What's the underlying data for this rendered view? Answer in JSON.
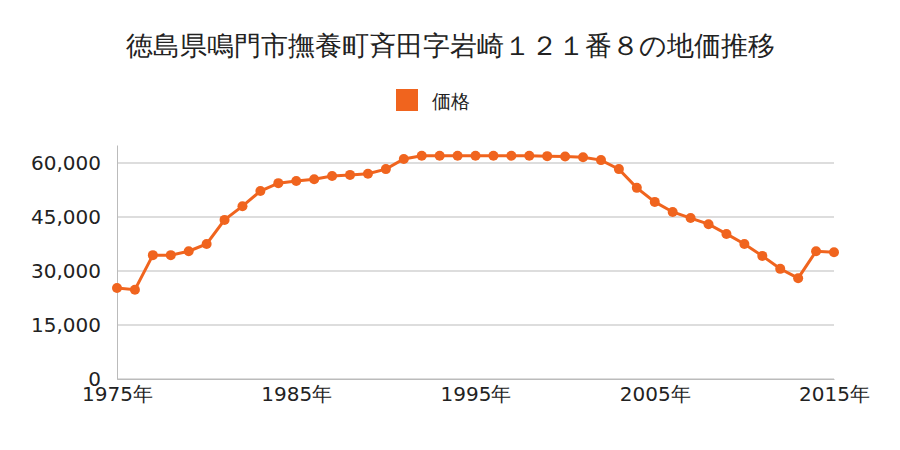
{
  "chart_data": {
    "type": "line",
    "title": "徳島県鳴門市撫養町斉田字岩崎１２１番８の地価推移",
    "x": [
      1975,
      1976,
      1977,
      1978,
      1979,
      1980,
      1981,
      1982,
      1983,
      1984,
      1985,
      1986,
      1987,
      1988,
      1989,
      1990,
      1991,
      1992,
      1993,
      1994,
      1995,
      1996,
      1997,
      1998,
      1999,
      2000,
      2001,
      2002,
      2003,
      2004,
      2005,
      2006,
      2007,
      2008,
      2009,
      2010,
      2011,
      2012,
      2013,
      2014,
      2015
    ],
    "series": [
      {
        "name": "価格",
        "color": "#f0641e",
        "marker": "circle",
        "line_style": "solid",
        "values": [
          25300,
          24800,
          34400,
          34400,
          35500,
          37500,
          44200,
          48000,
          52200,
          54400,
          55000,
          55500,
          56400,
          56700,
          57000,
          58300,
          61100,
          62000,
          62000,
          62000,
          62000,
          62000,
          62000,
          62000,
          61900,
          61800,
          61600,
          60800,
          58300,
          53100,
          49200,
          46400,
          44700,
          43000,
          40300,
          37500,
          34200,
          30600,
          28000,
          35500,
          35200
        ]
      }
    ],
    "xlim": [
      1975,
      2015
    ],
    "xticks": [
      {
        "value": 1975,
        "label": "1975年"
      },
      {
        "value": 1985,
        "label": "1985年"
      },
      {
        "value": 1995,
        "label": "1995年"
      },
      {
        "value": 2005,
        "label": "2005年"
      },
      {
        "value": 2015,
        "label": "2015年"
      }
    ],
    "ylim": [
      0,
      65000
    ],
    "yticks": [
      0,
      {
        "value": 15000,
        "label": "15,000"
      },
      {
        "value": 30000,
        "label": "30,000"
      },
      {
        "value": 45000,
        "label": "45,000"
      },
      {
        "value": 60000,
        "label": "60,000"
      }
    ],
    "grid": true,
    "legend": "top"
  }
}
